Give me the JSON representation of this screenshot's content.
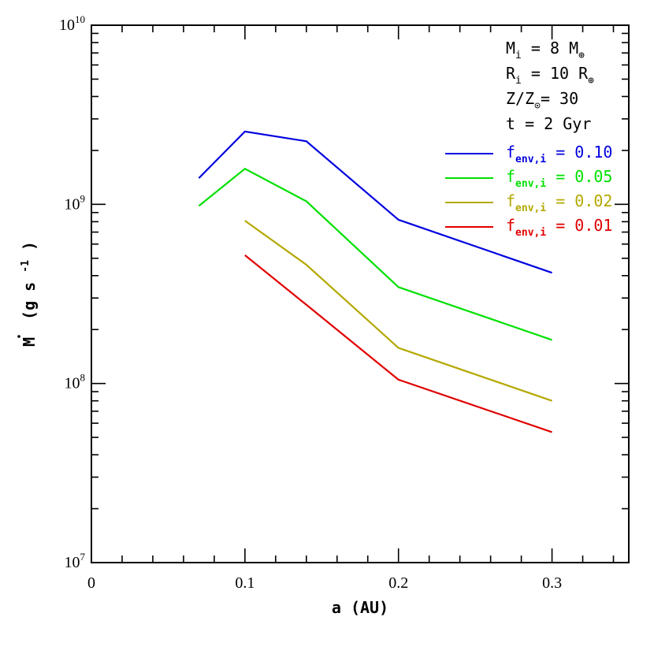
{
  "chart_data": {
    "type": "line",
    "xlabel": "a (AU)",
    "ylabel_main": "M",
    "ylabel_units": "(g s",
    "ylabel_exp": "-1",
    "ylabel_close": ")",
    "xlim": [
      0,
      0.35
    ],
    "ylim": [
      10000000,
      10000000000
    ],
    "yscale": "log",
    "x_ticks": [
      {
        "value": 0,
        "label": "0"
      },
      {
        "value": 0.1,
        "label": "0.1"
      },
      {
        "value": 0.2,
        "label": "0.2"
      },
      {
        "value": 0.3,
        "label": "0.3"
      }
    ],
    "y_ticks": [
      {
        "value": 10000000,
        "base": "10",
        "exp": "7"
      },
      {
        "value": 100000000,
        "base": "10",
        "exp": "8"
      },
      {
        "value": 1000000000,
        "base": "10",
        "exp": "9"
      },
      {
        "value": 10000000000,
        "base": "10",
        "exp": "10"
      }
    ],
    "annotations": [
      {
        "main": "M",
        "sub": "i",
        "rest": " = 8 M",
        "sub2": "⊕"
      },
      {
        "main": "R",
        "sub": "i",
        "rest": " = 10 R",
        "sub2": "⊕"
      },
      {
        "main": "Z/Z",
        "sub": "⊙",
        "rest": "= 30",
        "sub2": ""
      },
      {
        "main": "t = 2 Gyr",
        "sub": "",
        "rest": "",
        "sub2": ""
      }
    ],
    "legend_position": "top-right",
    "series": [
      {
        "name": "0.10",
        "label_main": "f",
        "label_sub": "env,i",
        "label_rest": " = 0.10",
        "color": "#0000e0",
        "x": [
          0.07,
          0.1,
          0.14,
          0.2,
          0.3
        ],
        "y": [
          1400000000,
          2550000000,
          2250000000,
          820000000,
          415000000
        ]
      },
      {
        "name": "0.05",
        "label_main": "f",
        "label_sub": "env,i",
        "label_rest": " = 0.05",
        "color": "#00e000",
        "x": [
          0.07,
          0.1,
          0.14,
          0.2,
          0.3
        ],
        "y": [
          980000000,
          1580000000,
          1040000000,
          345000000,
          175000000
        ]
      },
      {
        "name": "0.02",
        "label_main": "f",
        "label_sub": "env,i",
        "label_rest": " = 0.02",
        "color": "#b4a800",
        "x": [
          0.1,
          0.14,
          0.2,
          0.3
        ],
        "y": [
          810000000,
          460000000,
          158000000,
          80000000
        ]
      },
      {
        "name": "0.01",
        "label_main": "f",
        "label_sub": "env,i",
        "label_rest": " = 0.01",
        "color": "#e00000",
        "x": [
          0.1,
          0.14,
          0.2,
          0.3
        ],
        "y": [
          520000000,
          275000000,
          105000000,
          53500000
        ]
      }
    ]
  }
}
